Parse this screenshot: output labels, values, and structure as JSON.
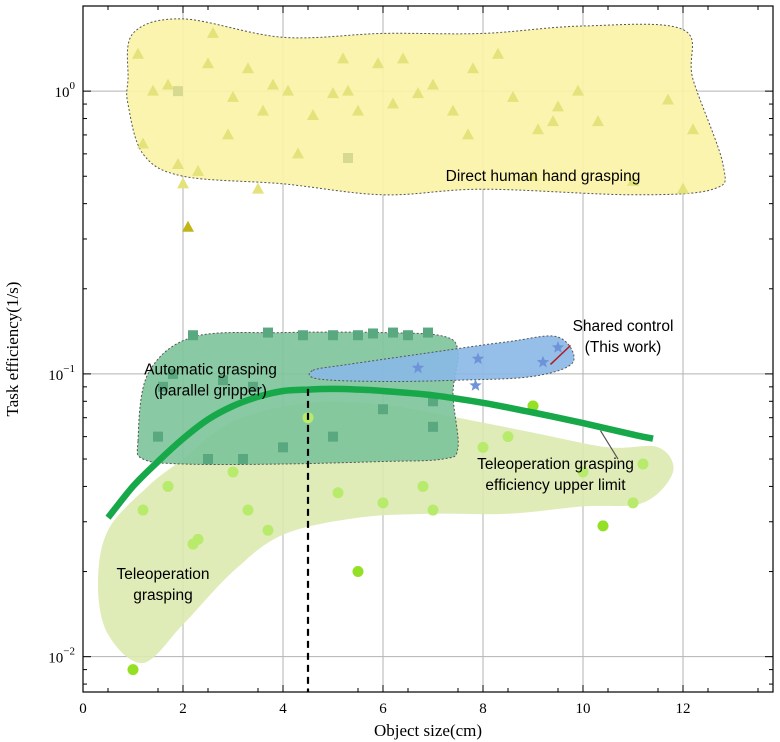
{
  "chart_data": {
    "type": "scatter",
    "xlabel": "Object size(cm)",
    "ylabel": "Task efficiency(1/s)",
    "xlim": [
      0,
      13.8
    ],
    "ylim": [
      0.0075,
      2.0
    ],
    "y_scale": "log",
    "grid": true,
    "x_ticks": [
      {
        "value": 0,
        "label": "0"
      },
      {
        "value": 2,
        "label": "2"
      },
      {
        "value": 4,
        "label": "4"
      },
      {
        "value": 6,
        "label": "6"
      },
      {
        "value": 8,
        "label": "8"
      },
      {
        "value": 10,
        "label": "10"
      },
      {
        "value": 12,
        "label": "12"
      }
    ],
    "y_ticks": [
      {
        "value": 0.01,
        "base": "10",
        "exp": "−2"
      },
      {
        "value": 0.1,
        "base": "10",
        "exp": "−1"
      },
      {
        "value": 1,
        "base": "10",
        "exp": "0"
      }
    ],
    "regions": [
      {
        "label_lines": [
          "Direct human hand grasping"
        ],
        "label_x": 9.2,
        "label_y": 0.5,
        "fill": "#fbf3a6",
        "stroke": "#555555",
        "outline": [
          [
            0.9,
            1.1
          ],
          [
            1.0,
            1.6
          ],
          [
            2.0,
            1.8
          ],
          [
            4.0,
            1.55
          ],
          [
            6.0,
            1.6
          ],
          [
            8.0,
            1.6
          ],
          [
            10.0,
            1.7
          ],
          [
            12.0,
            1.65
          ],
          [
            12.2,
            1.1
          ],
          [
            12.8,
            0.55
          ],
          [
            12.6,
            0.45
          ],
          [
            11.0,
            0.43
          ],
          [
            8.0,
            0.45
          ],
          [
            6.0,
            0.43
          ],
          [
            4.0,
            0.47
          ],
          [
            2.0,
            0.5
          ],
          [
            1.2,
            0.6
          ],
          [
            0.9,
            0.9
          ]
        ]
      },
      {
        "label_lines": [
          "Automatic grasping",
          "(parallel gripper)"
        ],
        "label_x": 2.55,
        "label_y": 0.095,
        "fill": "#7cc49a",
        "stroke": "#555555",
        "outline": [
          [
            1.1,
            0.058
          ],
          [
            1.3,
            0.1
          ],
          [
            2.2,
            0.135
          ],
          [
            4.0,
            0.14
          ],
          [
            6.0,
            0.14
          ],
          [
            7.2,
            0.136
          ],
          [
            7.5,
            0.12
          ],
          [
            7.4,
            0.085
          ],
          [
            7.5,
            0.055
          ],
          [
            7.2,
            0.05
          ],
          [
            6.0,
            0.049
          ],
          [
            4.0,
            0.048
          ],
          [
            2.0,
            0.048
          ],
          [
            1.2,
            0.05
          ]
        ]
      },
      {
        "label_lines": [
          "Teleoperation grasping",
          "efficiency upper limit"
        ],
        "label_x": 9.45,
        "label_y": 0.044,
        "fill": "#dbeab0",
        "stroke": "none",
        "outline": [
          [
            0.5,
            0.028
          ],
          [
            1.3,
            0.04
          ],
          [
            2.0,
            0.05
          ],
          [
            3.0,
            0.068
          ],
          [
            4.5,
            0.079
          ],
          [
            6.0,
            0.078
          ],
          [
            7.5,
            0.07
          ],
          [
            9.0,
            0.062
          ],
          [
            10.5,
            0.055
          ],
          [
            11.5,
            0.055
          ],
          [
            11.8,
            0.045
          ],
          [
            11.2,
            0.035
          ],
          [
            10.0,
            0.034
          ],
          [
            8.5,
            0.032
          ],
          [
            7.0,
            0.032
          ],
          [
            5.5,
            0.031
          ],
          [
            4.0,
            0.027
          ],
          [
            3.0,
            0.02
          ],
          [
            2.0,
            0.013
          ],
          [
            1.2,
            0.0095
          ],
          [
            0.5,
            0.012
          ],
          [
            0.3,
            0.018
          ]
        ]
      },
      {
        "label_lines": [
          "Teleoperation",
          "grasping"
        ],
        "label_x": 1.6,
        "label_y": 0.018,
        "fill": "none",
        "stroke": "none",
        "outline": []
      },
      {
        "label_lines": [],
        "label_x": 0,
        "label_y": 0,
        "fill": "#8ab8e6",
        "stroke": "#555555",
        "outline": [
          [
            4.6,
            0.103
          ],
          [
            5.3,
            0.108
          ],
          [
            6.8,
            0.118
          ],
          [
            8.5,
            0.13
          ],
          [
            9.5,
            0.135
          ],
          [
            9.8,
            0.11
          ],
          [
            9.0,
            0.098
          ],
          [
            7.5,
            0.095
          ],
          [
            6.0,
            0.094
          ],
          [
            4.7,
            0.096
          ]
        ]
      }
    ],
    "shared_control_label": [
      "Shared control",
      "(This work)"
    ],
    "shared_control_color": "#b01c1c",
    "upper_limit_curve": {
      "color": "#17a84a",
      "x": [
        0.5,
        1.0,
        1.5,
        2.0,
        2.5,
        3.0,
        3.5,
        4.0,
        4.5,
        5.0,
        5.5,
        6.0,
        7.0,
        8.0,
        9.0,
        10.0,
        11.0,
        11.4
      ],
      "y": [
        0.031,
        0.04,
        0.049,
        0.059,
        0.069,
        0.077,
        0.083,
        0.087,
        0.088,
        0.0885,
        0.088,
        0.087,
        0.084,
        0.079,
        0.073,
        0.067,
        0.061,
        0.059
      ]
    },
    "vertical_marker_x": 4.5,
    "series": [
      {
        "marker": "triangle",
        "color": "#e4e27a",
        "points": [
          [
            1.1,
            1.35
          ],
          [
            1.2,
            0.65
          ],
          [
            1.4,
            1.0
          ],
          [
            1.7,
            1.05
          ],
          [
            1.9,
            0.55
          ],
          [
            2.0,
            0.47
          ],
          [
            2.3,
            0.52
          ],
          [
            2.6,
            1.6
          ],
          [
            2.5,
            1.25
          ],
          [
            3.0,
            0.95
          ],
          [
            3.3,
            1.2
          ],
          [
            3.5,
            0.45
          ],
          [
            3.8,
            1.05
          ],
          [
            4.1,
            1.0
          ],
          [
            4.3,
            0.6
          ],
          [
            4.6,
            0.82
          ],
          [
            5.0,
            0.98
          ],
          [
            5.2,
            1.3
          ],
          [
            5.3,
            1.0
          ],
          [
            5.5,
            0.85
          ],
          [
            5.9,
            1.25
          ],
          [
            6.2,
            0.9
          ],
          [
            6.4,
            1.3
          ],
          [
            6.7,
            0.98
          ],
          [
            7.0,
            1.05
          ],
          [
            7.4,
            0.85
          ],
          [
            7.8,
            1.2
          ],
          [
            8.3,
            1.35
          ],
          [
            8.6,
            0.95
          ],
          [
            9.1,
            0.73
          ],
          [
            9.5,
            0.88
          ],
          [
            9.4,
            0.78
          ],
          [
            9.9,
            1.0
          ],
          [
            10.3,
            0.78
          ],
          [
            11.0,
            0.48
          ],
          [
            11.7,
            0.93
          ],
          [
            12.2,
            0.73
          ],
          [
            12.0,
            0.45
          ],
          [
            2.9,
            0.7
          ],
          [
            3.6,
            0.85
          ],
          [
            7.7,
            0.7
          ],
          [
            9.0,
            0.5
          ]
        ]
      },
      {
        "marker": "triangle",
        "color": "#c1b617",
        "points": [
          [
            2.1,
            0.33
          ]
        ]
      },
      {
        "marker": "square",
        "color": "#d6d98f",
        "points": [
          [
            1.9,
            1.0
          ],
          [
            5.3,
            0.58
          ]
        ]
      },
      {
        "marker": "square",
        "color": "#5aa87f",
        "points": [
          [
            2.2,
            0.137
          ],
          [
            3.7,
            0.14
          ],
          [
            4.4,
            0.137
          ],
          [
            5.0,
            0.137
          ],
          [
            5.5,
            0.137
          ],
          [
            5.8,
            0.139
          ],
          [
            6.2,
            0.14
          ],
          [
            6.5,
            0.137
          ],
          [
            6.9,
            0.14
          ],
          [
            1.8,
            0.1
          ],
          [
            1.6,
            0.09
          ],
          [
            3.4,
            0.09
          ],
          [
            2.8,
            0.095
          ],
          [
            6.0,
            0.075
          ],
          [
            7.0,
            0.08
          ],
          [
            1.5,
            0.06
          ],
          [
            2.5,
            0.05
          ],
          [
            3.2,
            0.05
          ],
          [
            4.0,
            0.055
          ],
          [
            5.0,
            0.06
          ],
          [
            7.0,
            0.065
          ]
        ]
      },
      {
        "marker": "star",
        "color": "#6f93d9",
        "points": [
          [
            7.9,
            0.113
          ],
          [
            9.5,
            0.124
          ],
          [
            7.85,
            0.091
          ],
          [
            6.7,
            0.105
          ],
          [
            9.2,
            0.11
          ]
        ]
      },
      {
        "marker": "circle",
        "color": "#b8eb6c",
        "points": [
          [
            1.2,
            0.033
          ],
          [
            1.7,
            0.04
          ],
          [
            2.3,
            0.026
          ],
          [
            3.3,
            0.033
          ],
          [
            5.1,
            0.038
          ],
          [
            3.0,
            0.045
          ],
          [
            3.7,
            0.028
          ],
          [
            6.0,
            0.035
          ],
          [
            6.8,
            0.04
          ],
          [
            7.0,
            0.033
          ],
          [
            8.0,
            0.055
          ],
          [
            8.5,
            0.06
          ],
          [
            9.0,
            0.077
          ],
          [
            10.0,
            0.045
          ],
          [
            11.0,
            0.035
          ],
          [
            11.2,
            0.048
          ],
          [
            4.5,
            0.07
          ],
          [
            2.2,
            0.025
          ]
        ]
      },
      {
        "marker": "circle",
        "color": "#93e024",
        "points": [
          [
            1.0,
            0.009
          ],
          [
            5.5,
            0.02
          ],
          [
            10.4,
            0.029
          ],
          [
            9.0,
            0.077
          ]
        ]
      }
    ]
  }
}
